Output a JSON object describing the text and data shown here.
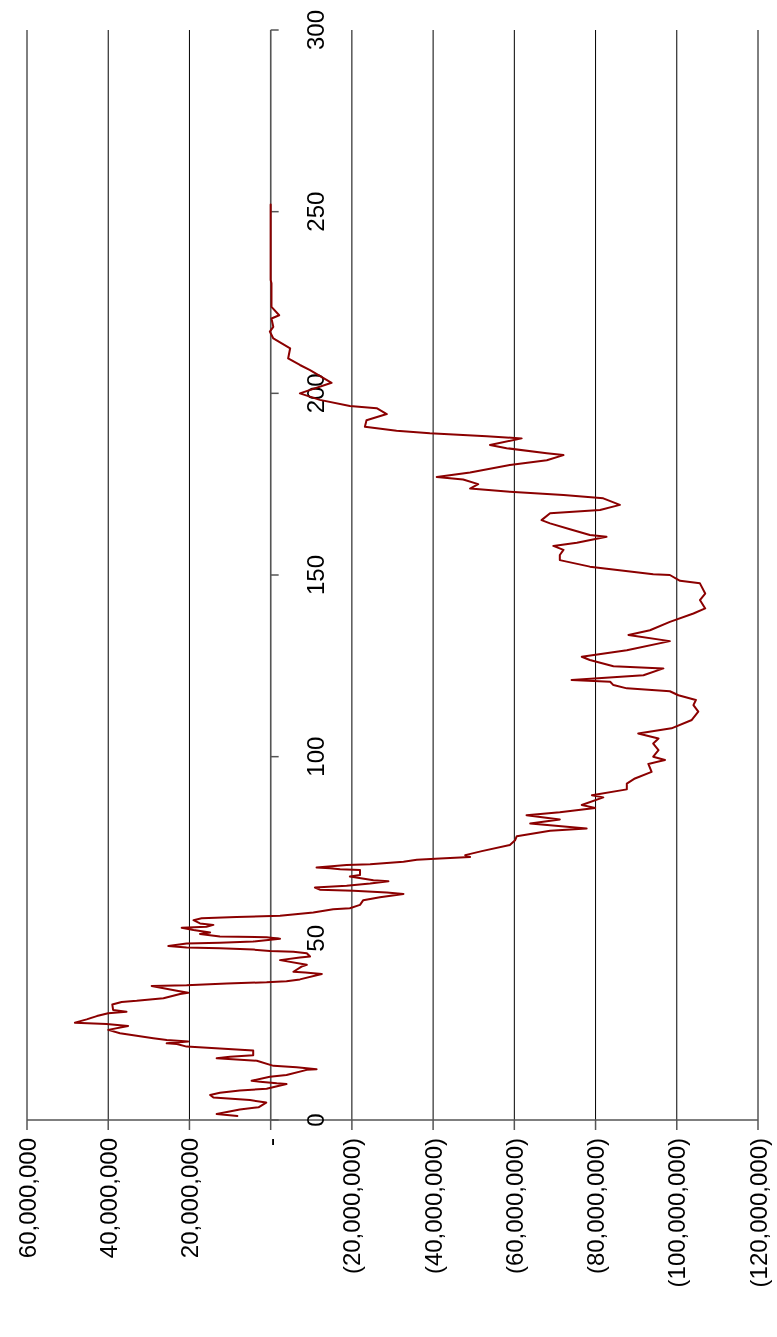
{
  "chart_data": {
    "type": "line",
    "ylim": [
      0,
      300
    ],
    "yticks": [
      0,
      50,
      100,
      150,
      200,
      250,
      300
    ],
    "xlim": [
      60000000,
      -120000000
    ],
    "xticks": [
      {
        "value": 60000000,
        "label": "60,000,000"
      },
      {
        "value": 40000000,
        "label": "40,000,000"
      },
      {
        "value": 20000000,
        "label": "20,000,000"
      },
      {
        "value": 0,
        "label": "-"
      },
      {
        "value": -20000000,
        "label": "(20,000,000)"
      },
      {
        "value": -40000000,
        "label": "(40,000,000)"
      },
      {
        "value": -60000000,
        "label": "(60,000,000)"
      },
      {
        "value": -80000000,
        "label": "(80,000,000)"
      },
      {
        "value": -100000000,
        "label": "(100,000,000)"
      },
      {
        "value": -120000000,
        "label": "(120,000,000)"
      }
    ],
    "grid": "x",
    "marker": "none",
    "line_style": "solid",
    "series": [
      {
        "color": "#8b0000",
        "values": [
          1.1,
          1.65,
          2.9,
          3.5,
          4.8,
          5.5,
          6.2,
          6.9,
          7.5,
          8.1,
          8.6,
          9.9,
          10.1,
          10.55,
          10.8,
          11.9,
          12.4,
          13.8,
          14.0,
          14.5,
          14.9,
          16.3,
          17.0,
          17.4,
          17.8,
          19.1,
          19.7,
          20.2,
          20.9,
          21.1,
          21.6,
          22.0,
          22.5,
          23.9,
          24.8,
          25.9,
          26.4,
          26.8,
          27.7,
          28.6,
          29.4,
          29.8,
          30.3,
          31.8,
          32.5,
          32.8,
          33.5,
          34.7,
          35.0,
          35.6,
          36.9,
          37.1,
          37.6,
          37.9,
          38.2,
          38.7,
          40.2,
          40.6,
          40.8,
          42.2,
          42.7,
          44.0,
          44.7,
          45.0,
          45.9,
          46.3,
          46.5,
          46.9,
          47.3,
          47.5,
          47.9,
          48.6,
          48.8,
          49.1,
          49.9,
          50.3,
          50.5,
          51.2,
          51.6,
          52.3,
          52.9,
          53.2,
          53.7,
          54.1,
          55.0,
          55.5,
          55.9,
          56.2,
          57.1,
          58.0,
          58.3,
          59.2,
          60.5,
          61.3,
          62.2,
          62.6,
          63.1,
          63.4,
          64.0,
          64.5,
          65.1,
          65.7,
          66.0,
          67.0,
          67.4,
          68.8,
          69.0,
          69.3,
          69.5,
          70.2,
          70.4,
          71.1,
          71.6,
          72.0,
          72.4,
          72.9,
          74.0,
          75.7,
          77.0,
          78.1,
          79.6,
          80.25,
          81.6,
          82.7,
          83.9,
          84.7,
          85.9,
          86.7,
          88.8,
          89.4,
          91.0,
          92.6,
          94.0,
          95.8,
          98.0,
          99.1,
          100.0,
          101.8,
          103.6,
          105.0,
          106.4,
          107.8,
          110.1,
          112.4,
          114.2,
          115.6,
          116.9,
          118.0,
          118.8,
          119.7,
          120.6,
          121.1,
          122.4,
          124.3,
          124.9,
          126.6,
          127.5,
          129.3,
          131.8,
          133.5,
          134.8,
          137.1,
          139.4,
          140.8,
          143.1,
          144.9,
          147.7,
          148.4,
          150.0,
          150.2,
          152.3,
          154.1,
          155.5,
          156.9,
          158.0,
          158.9,
          160.5,
          161.0,
          162.6,
          164.2,
          165.1,
          167.0,
          167.9,
          169.3,
          171.1,
          172.0,
          172.9,
          173.8,
          175.0,
          176.3,
          177.0,
          178.2,
          180.3,
          181.6,
          183.0,
          183.5,
          184.9,
          185.8,
          187.6,
          188.2,
          189.0,
          189.7,
          190.8,
          192.6,
          194.3,
          195.9,
          196.5,
          198.2,
          200.0,
          202.9,
          206.4,
          207.8,
          209.6,
          212.4,
          215.1,
          217.0,
          218.3,
          220.6,
          221.5,
          223.8,
          230.3,
          231.2,
          252.0
        ],
        "x": [
          8200000,
          13300000,
          7600000,
          3000000,
          1100000,
          5100000,
          14100000,
          14900000,
          12500000,
          7600000,
          1000000,
          -3900000,
          -1500000,
          2600000,
          4700000,
          200000,
          -3900000,
          -8900000,
          -11300000,
          -6400000,
          -700000,
          3400000,
          13300000,
          10000000,
          4300000,
          4300000,
          12500000,
          20700000,
          23100000,
          25600000,
          20300000,
          25600000,
          28900000,
          37100000,
          40000000,
          35100000,
          40400000,
          48200000,
          45300000,
          42800000,
          40000000,
          35500000,
          38800000,
          39000000,
          36700000,
          33000000,
          26400000,
          22300000,
          20300000,
          23100000,
          29300000,
          20700000,
          10800000,
          1000000,
          -3900000,
          -7200000,
          -12600000,
          -8500000,
          -5600000,
          -7600000,
          -8900000,
          -2300000,
          -7200000,
          -9700000,
          -8900000,
          -5600000,
          200000,
          4300000,
          12500000,
          20700000,
          25200000,
          20700000,
          12500000,
          4300000,
          -2300000,
          1000000,
          12500000,
          17400000,
          14900000,
          19000000,
          21900000,
          15800000,
          14100000,
          17400000,
          19000000,
          17000000,
          8400000,
          -2300000,
          -10500000,
          -15400000,
          -19500000,
          -22000000,
          -22800000,
          -26900000,
          -32700000,
          -28600000,
          -20400000,
          -12100000,
          -10900000,
          -18700000,
          -24500000,
          -29000000,
          -25300000,
          -19500000,
          -22000000,
          -22000000,
          -17100000,
          -14600000,
          -11300000,
          -18700000,
          -24500000,
          -32700000,
          -36000000,
          -41700000,
          -49100000,
          -47900000,
          -52000000,
          -58900000,
          -60200000,
          -60600000,
          -68800000,
          -77800000,
          -63900000,
          -71200000,
          -63000000,
          -71200000,
          -79900000,
          -76600000,
          -81900000,
          -79100000,
          -87700000,
          -87700000,
          -89700000,
          -93800000,
          -93000000,
          -97100000,
          -94200000,
          -95500000,
          -94200000,
          -95500000,
          -90500000,
          -98700000,
          -103700000,
          -105300000,
          -104100000,
          -104700000,
          -100400000,
          -98300000,
          -87700000,
          -84400000,
          -83600000,
          -74100000,
          -91800000,
          -96700000,
          -84400000,
          -78600000,
          -76600000,
          -87700000,
          -98300000,
          -88100000,
          -93400000,
          -98300000,
          -104100000,
          -107000000,
          -105700000,
          -107000000,
          -105700000,
          -100800000,
          -98300000,
          -94200000,
          -78600000,
          -71200000,
          -71200000,
          -72100000,
          -69600000,
          -75400000,
          -82700000,
          -78600000,
          -73700000,
          -68800000,
          -66700000,
          -68800000,
          -81100000,
          -86000000,
          -81900000,
          -72100000,
          -58900000,
          -49100000,
          -51100000,
          -47400000,
          -40900000,
          -49100000,
          -58900000,
          -68000000,
          -72100000,
          -68000000,
          -58100000,
          -54000000,
          -61800000,
          -53200000,
          -39200000,
          -31000000,
          -23200000,
          -23600000,
          -28600000,
          -26100000,
          -19500000,
          -12100000,
          -7200000,
          -15000000,
          -9700000,
          -7200000,
          -4300000,
          -4800000,
          -650000,
          200000,
          -650000,
          -200000,
          -2100000,
          -200000,
          -200000,
          0,
          0
        ]
      }
    ]
  }
}
